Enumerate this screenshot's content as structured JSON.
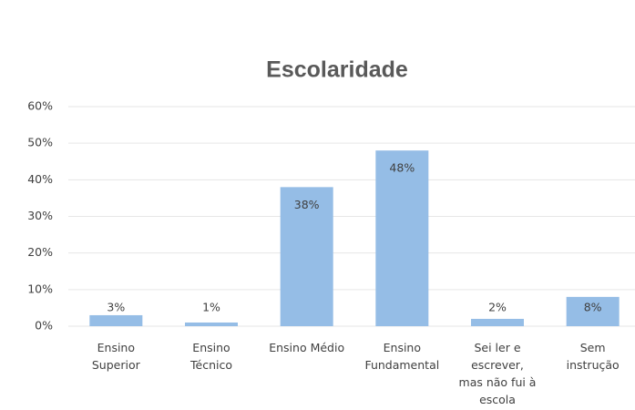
{
  "chart_data": {
    "type": "bar",
    "title": "Escolaridade",
    "categories": [
      "Ensino\nSuperior",
      "Ensino\nTécnico",
      "Ensino Médio",
      "Ensino\nFundamental",
      "Sei ler e\nescrever,\nmas não fui à\nescola",
      "Sem\ninstrução"
    ],
    "values": [
      3,
      1,
      38,
      48,
      2,
      8
    ],
    "value_labels": [
      "3%",
      "1%",
      "38%",
      "48%",
      "2%",
      "8%"
    ],
    "color": "#95bde6",
    "ylim": [
      0,
      60
    ],
    "yticks": [
      {
        "value": 0,
        "label": "0%"
      },
      {
        "value": 10,
        "label": "10%"
      },
      {
        "value": 20,
        "label": "20%"
      },
      {
        "value": 30,
        "label": "30%"
      },
      {
        "value": 40,
        "label": "40%"
      },
      {
        "value": 50,
        "label": "50%"
      },
      {
        "value": 60,
        "label": "60%"
      }
    ],
    "grid": true
  }
}
